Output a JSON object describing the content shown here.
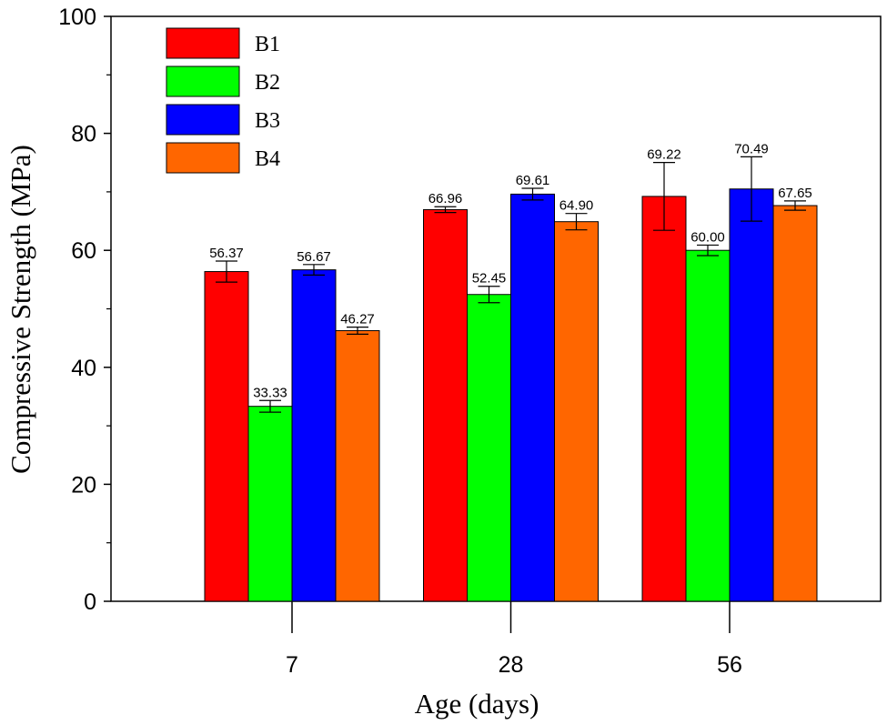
{
  "chart_data": {
    "type": "bar",
    "title": "",
    "xlabel": "Age (days)",
    "ylabel": "Compressive Strength (MPa)",
    "ylim": [
      0,
      100
    ],
    "y_ticks": [
      "0",
      "20",
      "40",
      "60",
      "80",
      "100"
    ],
    "categories": [
      "7",
      "28",
      "56"
    ],
    "grid": false,
    "legend_position": "top-left",
    "series": [
      {
        "name": "B1",
        "color": "#ff0000",
        "values": [
          56.37,
          66.96,
          69.22
        ],
        "errors": [
          1.8,
          0.5,
          5.8
        ],
        "labels": [
          "56.37",
          "66.96",
          "69.22"
        ]
      },
      {
        "name": "B2",
        "color": "#00ff00",
        "values": [
          33.33,
          52.45,
          60.0
        ],
        "errors": [
          1.0,
          1.4,
          0.9
        ],
        "labels": [
          "33.33",
          "52.45",
          "60.00"
        ]
      },
      {
        "name": "B3",
        "color": "#0000ff",
        "values": [
          56.67,
          69.61,
          70.49
        ],
        "errors": [
          0.9,
          1.0,
          5.5
        ],
        "labels": [
          "56.67",
          "69.61",
          "70.49"
        ]
      },
      {
        "name": "B4",
        "color": "#ff6600",
        "values": [
          46.27,
          64.9,
          67.65
        ],
        "errors": [
          0.6,
          1.4,
          0.8
        ],
        "labels": [
          "46.27",
          "64.90",
          "67.65"
        ]
      }
    ]
  }
}
